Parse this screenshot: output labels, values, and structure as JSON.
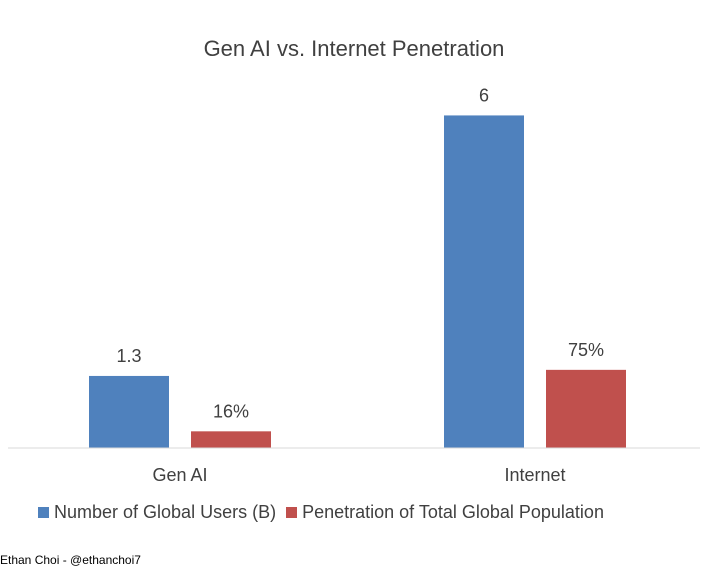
{
  "chart_data": {
    "type": "bar",
    "title": "Gen AI vs. Internet Penetration",
    "categories": [
      "Gen AI",
      "Internet"
    ],
    "series": [
      {
        "name": "Number of Global Users (B)",
        "color": "#4F81BD",
        "values": [
          1.3,
          6
        ],
        "labels": [
          "1.3",
          "6"
        ]
      },
      {
        "name": "Penetration of Total Global Population",
        "color": "#C0504D",
        "values": [
          0.16,
          0.75
        ],
        "labels": [
          "16%",
          "75%"
        ]
      }
    ],
    "xlabel": "",
    "ylabel": "",
    "ylim": [
      0,
      7
    ],
    "grid": false,
    "legend_position": "bottom"
  },
  "credit": "Ethan Choi - @ethanchoi7"
}
